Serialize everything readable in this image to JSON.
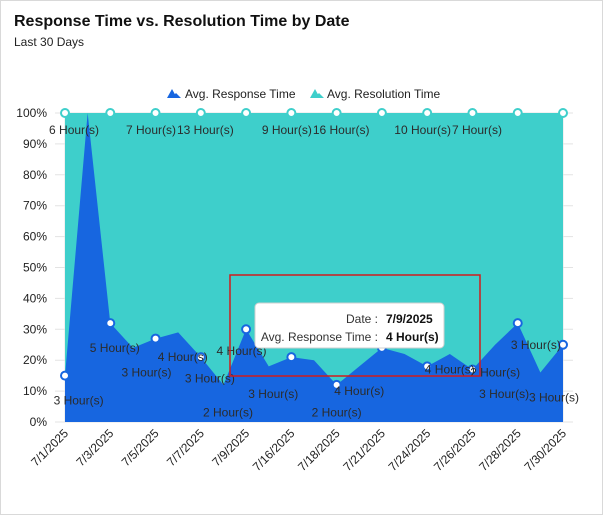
{
  "chart_data": {
    "type": "area",
    "title": "Response Time vs. Resolution Time by Date",
    "subtitle": "Last 30 Days",
    "y_ticks": [
      "0%",
      "10%",
      "20%",
      "30%",
      "40%",
      "50%",
      "60%",
      "70%",
      "80%",
      "90%",
      "100%"
    ],
    "ylim": [
      0,
      100
    ],
    "x_ticks": [
      "7/1/2025",
      "7/3/2025",
      "7/5/2025",
      "7/7/2025",
      "7/9/2025",
      "7/16/2025",
      "7/18/2025",
      "7/21/2025",
      "7/24/2025",
      "7/26/2025",
      "7/28/2025",
      "7/30/2025"
    ],
    "grid": true,
    "legend_position": "top-center",
    "series": [
      {
        "name": "Avg. Response Time",
        "color": "#1766e0",
        "points": [
          {
            "x": 0,
            "y": 15
          },
          {
            "x": 0.5,
            "y": 100
          },
          {
            "x": 1,
            "y": 32
          },
          {
            "x": 1.5,
            "y": 24
          },
          {
            "x": 2,
            "y": 27
          },
          {
            "x": 2.5,
            "y": 29
          },
          {
            "x": 3,
            "y": 21
          },
          {
            "x": 3.5,
            "y": 12
          },
          {
            "x": 4,
            "y": 30
          },
          {
            "x": 4.5,
            "y": 18
          },
          {
            "x": 5,
            "y": 21
          },
          {
            "x": 5.5,
            "y": 20
          },
          {
            "x": 6,
            "y": 12
          },
          {
            "x": 6.5,
            "y": 18
          },
          {
            "x": 7,
            "y": 24
          },
          {
            "x": 7.5,
            "y": 22
          },
          {
            "x": 8,
            "y": 18
          },
          {
            "x": 8.5,
            "y": 22
          },
          {
            "x": 9,
            "y": 17
          },
          {
            "x": 9.5,
            "y": 25
          },
          {
            "x": 10,
            "y": 32
          },
          {
            "x": 10.5,
            "y": 16
          },
          {
            "x": 11,
            "y": 25
          }
        ]
      },
      {
        "name": "Avg. Resolution Time",
        "color": "#3ecfcb",
        "points": [
          {
            "x": 0,
            "y": 100
          },
          {
            "x": 0.5,
            "y": 100
          },
          {
            "x": 1,
            "y": 100
          },
          {
            "x": 1.5,
            "y": 100
          },
          {
            "x": 2,
            "y": 100
          },
          {
            "x": 2.5,
            "y": 100
          },
          {
            "x": 3,
            "y": 100
          },
          {
            "x": 3.5,
            "y": 100
          },
          {
            "x": 4,
            "y": 100
          },
          {
            "x": 4.5,
            "y": 100
          },
          {
            "x": 5,
            "y": 100
          },
          {
            "x": 5.5,
            "y": 100
          },
          {
            "x": 6,
            "y": 100
          },
          {
            "x": 6.5,
            "y": 100
          },
          {
            "x": 7,
            "y": 100
          },
          {
            "x": 7.5,
            "y": 100
          },
          {
            "x": 8,
            "y": 100
          },
          {
            "x": 8.5,
            "y": 100
          },
          {
            "x": 9,
            "y": 100
          },
          {
            "x": 9.5,
            "y": 100
          },
          {
            "x": 10,
            "y": 100
          },
          {
            "x": 10.5,
            "y": 100
          },
          {
            "x": 11,
            "y": 100
          }
        ]
      }
    ],
    "resolution_labels": [
      {
        "x": 0.2,
        "text": "6 Hour(s)"
      },
      {
        "x": 1.9,
        "text": "7 Hour(s)"
      },
      {
        "x": 3.1,
        "text": "13 Hour(s)"
      },
      {
        "x": 4.9,
        "text": "9 Hour(s)"
      },
      {
        "x": 6.1,
        "text": "16 Hour(s)"
      },
      {
        "x": 7.9,
        "text": "10 Hour(s)"
      },
      {
        "x": 9.1,
        "text": "7 Hour(s)"
      }
    ],
    "response_labels": [
      {
        "x": 0.3,
        "y": 7,
        "text": "3 Hour(s)"
      },
      {
        "x": 1.1,
        "y": 24,
        "text": "5 Hour(s)"
      },
      {
        "x": 1.8,
        "y": 16,
        "text": "3 Hour(s)"
      },
      {
        "x": 2.6,
        "y": 21,
        "text": "4 Hour(s)"
      },
      {
        "x": 3.2,
        "y": 14,
        "text": "3 Hour(s)"
      },
      {
        "x": 3.6,
        "y": 3,
        "text": "2 Hour(s)"
      },
      {
        "x": 3.9,
        "y": 23,
        "text": "4 Hour(s)"
      },
      {
        "x": 4.6,
        "y": 9,
        "text": "3 Hour(s)"
      },
      {
        "x": 6.0,
        "y": 3,
        "text": "2 Hour(s)"
      },
      {
        "x": 6.5,
        "y": 10,
        "text": "4 Hour(s)"
      },
      {
        "x": 8.5,
        "y": 17,
        "text": "4 Hour(s)"
      },
      {
        "x": 9.5,
        "y": 16,
        "text": "2 Hour(s)"
      },
      {
        "x": 9.7,
        "y": 9,
        "text": "3 Hour(s)"
      },
      {
        "x": 10.4,
        "y": 25,
        "text": "3 Hour(s)"
      },
      {
        "x": 10.8,
        "y": 8,
        "text": "3 Hour(s)"
      }
    ],
    "tooltip": {
      "date_label": "Date :",
      "date_value": "7/9/2025",
      "metric_label": "Avg. Response Time :",
      "metric_value": "4 Hour(s)"
    }
  }
}
